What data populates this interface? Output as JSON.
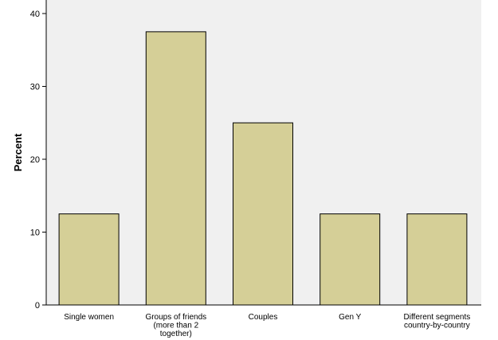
{
  "chart_data": {
    "type": "bar",
    "categories": [
      [
        "Single women"
      ],
      [
        "Groups of friends",
        "(more than 2",
        "together)"
      ],
      [
        "Couples"
      ],
      [
        "Gen Y"
      ],
      [
        "Different segments",
        "country-by-country"
      ]
    ],
    "values": [
      12.5,
      37.5,
      25,
      12.5,
      12.5
    ],
    "title": "",
    "xlabel": "",
    "ylabel": "Percent",
    "ylim": [
      0,
      40
    ],
    "yticks": [
      0,
      10,
      20,
      30,
      40
    ],
    "grid": false,
    "colors": {
      "plot_background": "#f0f0f0",
      "bar_fill": "#d5cf97",
      "bar_stroke": "#000000",
      "axis": "#000000"
    }
  }
}
